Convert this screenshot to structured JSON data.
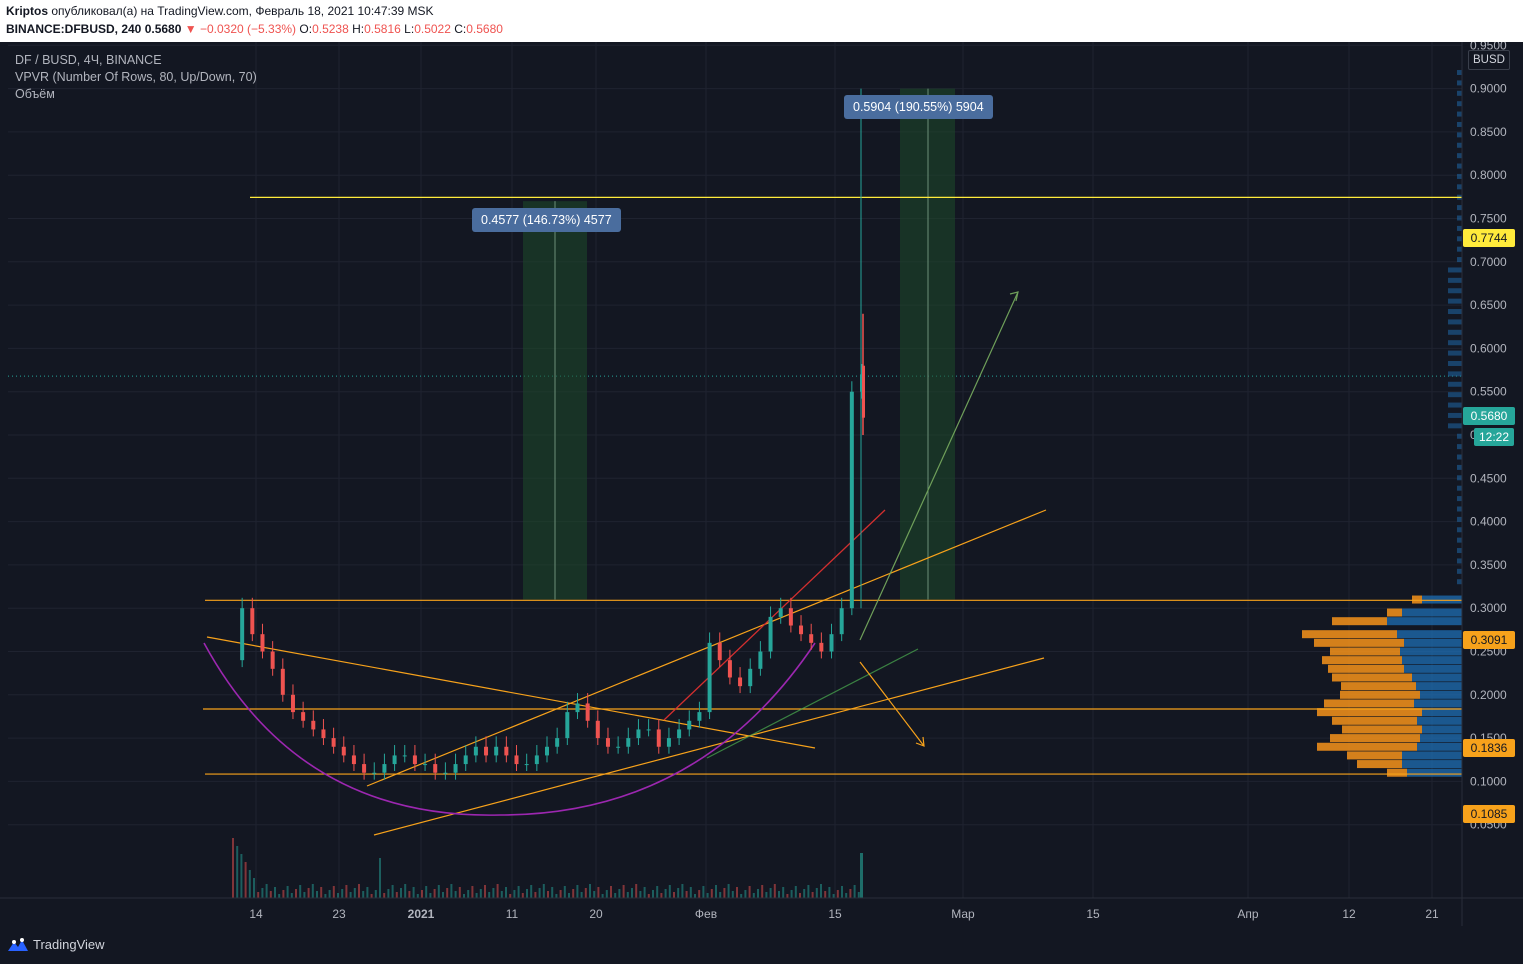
{
  "header": {
    "author": "Kriptos",
    "published_text": "опубликовал(а) на TradingView.com, Февраль 18, 2021 10:47:39 MSK",
    "symbol": "BINANCE:DFBUSD, 240",
    "last": "0.5680",
    "change": "−0.0320 (−5.33%)",
    "o_label": "O:",
    "o_value": "0.5238",
    "h_label": "H:",
    "h_value": "0.5816",
    "l_label": "L:",
    "l_value": "0.5022",
    "c_label": "C:",
    "c_value": "0.5680"
  },
  "legend": {
    "title": "DF / BUSD, 4Ч, BINANCE",
    "vpvr": "VPVR (Number Of Rows, 80, Up/Down, 70)",
    "volume": "Объём"
  },
  "axis": {
    "currency": "BUSD",
    "y_ticks": [
      "0.9500",
      "0.9000",
      "0.8500",
      "0.8000",
      "0.7500",
      "0.7000",
      "0.6500",
      "0.6000",
      "0.5500",
      "0.5000",
      "0.4500",
      "0.4000",
      "0.3500",
      "0.3000",
      "0.2500",
      "0.2000",
      "0.1500",
      "0.1000",
      "0.0500"
    ],
    "x_ticks": [
      "14",
      "23",
      "2021",
      "11",
      "20",
      "Фев",
      "15",
      "Мар",
      "15",
      "Апр",
      "12",
      "21"
    ]
  },
  "price_labels": {
    "level_top": "0.7744",
    "current": "0.5680",
    "countdown": "12:22",
    "level_resistance": "0.3091",
    "level_mid": "0.1836",
    "level_support": "0.1085"
  },
  "measures": {
    "first": "0.4577 (146.73%) 4577",
    "second": "0.5904 (190.55%) 5904"
  },
  "footer": {
    "brand": "TradingView"
  },
  "colors": {
    "background": "#131722",
    "up": "#26a69a",
    "down": "#ef5350",
    "yellow_line": "#ffeb3b",
    "orange_line": "#f7a21b",
    "purple_curve": "#9c27b0",
    "vpvr_up": "#1f6fb4",
    "vpvr_down": "#f7931a"
  },
  "chart_data": {
    "type": "candlestick",
    "symbol": "DF / BUSD",
    "timeframe": "4Ч",
    "exchange": "BINANCE",
    "ylim": [
      0,
      0.97
    ],
    "y_scale": "linear",
    "horizontal_levels": [
      0.7744,
      0.3091,
      0.1836,
      0.1085
    ],
    "current_price": 0.568,
    "close_path": [
      0.24,
      0.3,
      0.27,
      0.25,
      0.23,
      0.2,
      0.18,
      0.17,
      0.16,
      0.15,
      0.14,
      0.13,
      0.12,
      0.11,
      0.11,
      0.12,
      0.13,
      0.13,
      0.12,
      0.12,
      0.11,
      0.11,
      0.12,
      0.13,
      0.14,
      0.13,
      0.14,
      0.13,
      0.12,
      0.12,
      0.13,
      0.14,
      0.15,
      0.18,
      0.19,
      0.17,
      0.15,
      0.14,
      0.14,
      0.15,
      0.16,
      0.16,
      0.14,
      0.15,
      0.16,
      0.17,
      0.18,
      0.26,
      0.24,
      0.22,
      0.21,
      0.23,
      0.25,
      0.29,
      0.3,
      0.28,
      0.27,
      0.26,
      0.25,
      0.27,
      0.3,
      0.55,
      0.57
    ],
    "volume_profile_note": "VPVR up/down histogram on right side"
  }
}
